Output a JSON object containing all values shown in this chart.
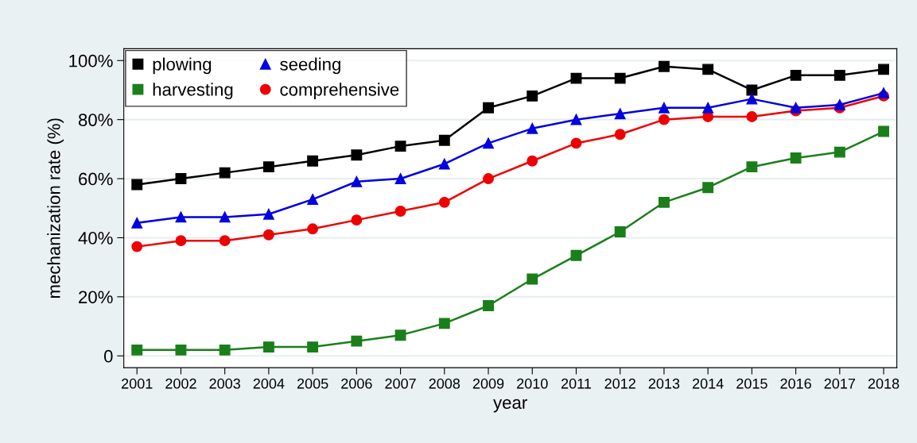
{
  "chart_data": {
    "type": "line",
    "xlabel": "year",
    "ylabel": "mechanization rate (%)",
    "categories": [
      "2001",
      "2002",
      "2003",
      "2004",
      "2005",
      "2006",
      "2007",
      "2008",
      "2009",
      "2010",
      "2011",
      "2012",
      "2013",
      "2014",
      "2015",
      "2016",
      "2017",
      "2018"
    ],
    "series": [
      {
        "name": "plowing",
        "color": "#000000",
        "marker": "square",
        "values": [
          58,
          60,
          62,
          64,
          66,
          68,
          71,
          73,
          84,
          88,
          94,
          94,
          98,
          97,
          90,
          95,
          95,
          97
        ]
      },
      {
        "name": "harvesting",
        "color": "#1a7f1a",
        "marker": "square",
        "values": [
          2,
          2,
          2,
          3,
          3,
          5,
          7,
          11,
          17,
          26,
          34,
          42,
          52,
          57,
          64,
          67,
          69,
          76
        ]
      },
      {
        "name": "seeding",
        "color": "#0000e0",
        "marker": "triangle",
        "values": [
          45,
          47,
          47,
          48,
          53,
          59,
          60,
          65,
          72,
          77,
          80,
          82,
          84,
          84,
          87,
          84,
          85,
          89
        ]
      },
      {
        "name": "comprehensive",
        "color": "#ee0000",
        "marker": "circle",
        "values": [
          37,
          39,
          39,
          41,
          43,
          46,
          49,
          52,
          60,
          66,
          72,
          75,
          80,
          81,
          81,
          83,
          84,
          88
        ]
      }
    ],
    "ylim": [
      -4,
      104
    ],
    "yticks": [
      0,
      {
        "value": 20,
        "label": "20%"
      },
      {
        "value": 40,
        "label": "40%"
      },
      {
        "value": 60,
        "label": "60%"
      },
      {
        "value": 80,
        "label": "80%"
      },
      {
        "value": 100,
        "label": "100%"
      }
    ],
    "grid": "y",
    "legend": "top left",
    "line_style": "solid"
  }
}
